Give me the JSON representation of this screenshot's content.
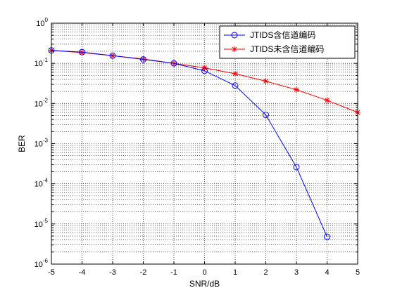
{
  "chart_data": {
    "type": "line",
    "title": "",
    "xlabel": "SNR/dB",
    "ylabel": "BER",
    "xlim": [
      -5,
      5
    ],
    "ylim": [
      1e-06,
      1
    ],
    "yscale": "log",
    "grid": true,
    "legend_position": "top-right",
    "x_ticks": [
      "-5",
      "-4",
      "-3",
      "-2",
      "-1",
      "0",
      "1",
      "2",
      "3",
      "4",
      "5"
    ],
    "y_ticks": [
      {
        "base": "10",
        "exp": "0"
      },
      {
        "base": "10",
        "exp": "-1"
      },
      {
        "base": "10",
        "exp": "-2"
      },
      {
        "base": "10",
        "exp": "-3"
      },
      {
        "base": "10",
        "exp": "-4"
      },
      {
        "base": "10",
        "exp": "-5"
      },
      {
        "base": "10",
        "exp": "-6"
      }
    ],
    "series": [
      {
        "name": "JTIDS含信道编码",
        "color": "#0000ff",
        "marker": "circle",
        "x": [
          -5,
          -4,
          -3,
          -2,
          -1,
          0,
          1,
          2,
          3,
          4
        ],
        "y": [
          0.21,
          0.19,
          0.155,
          0.125,
          0.1,
          0.065,
          0.028,
          0.0052,
          0.00026,
          4.8e-06
        ]
      },
      {
        "name": "JTIDS未含信道编码",
        "color": "#ff0000",
        "marker": "star",
        "x": [
          -5,
          -4,
          -3,
          -2,
          -1,
          0,
          1,
          2,
          3,
          4,
          5
        ],
        "y": [
          0.21,
          0.185,
          0.155,
          0.128,
          0.1,
          0.077,
          0.055,
          0.036,
          0.022,
          0.012,
          0.006
        ]
      }
    ]
  }
}
